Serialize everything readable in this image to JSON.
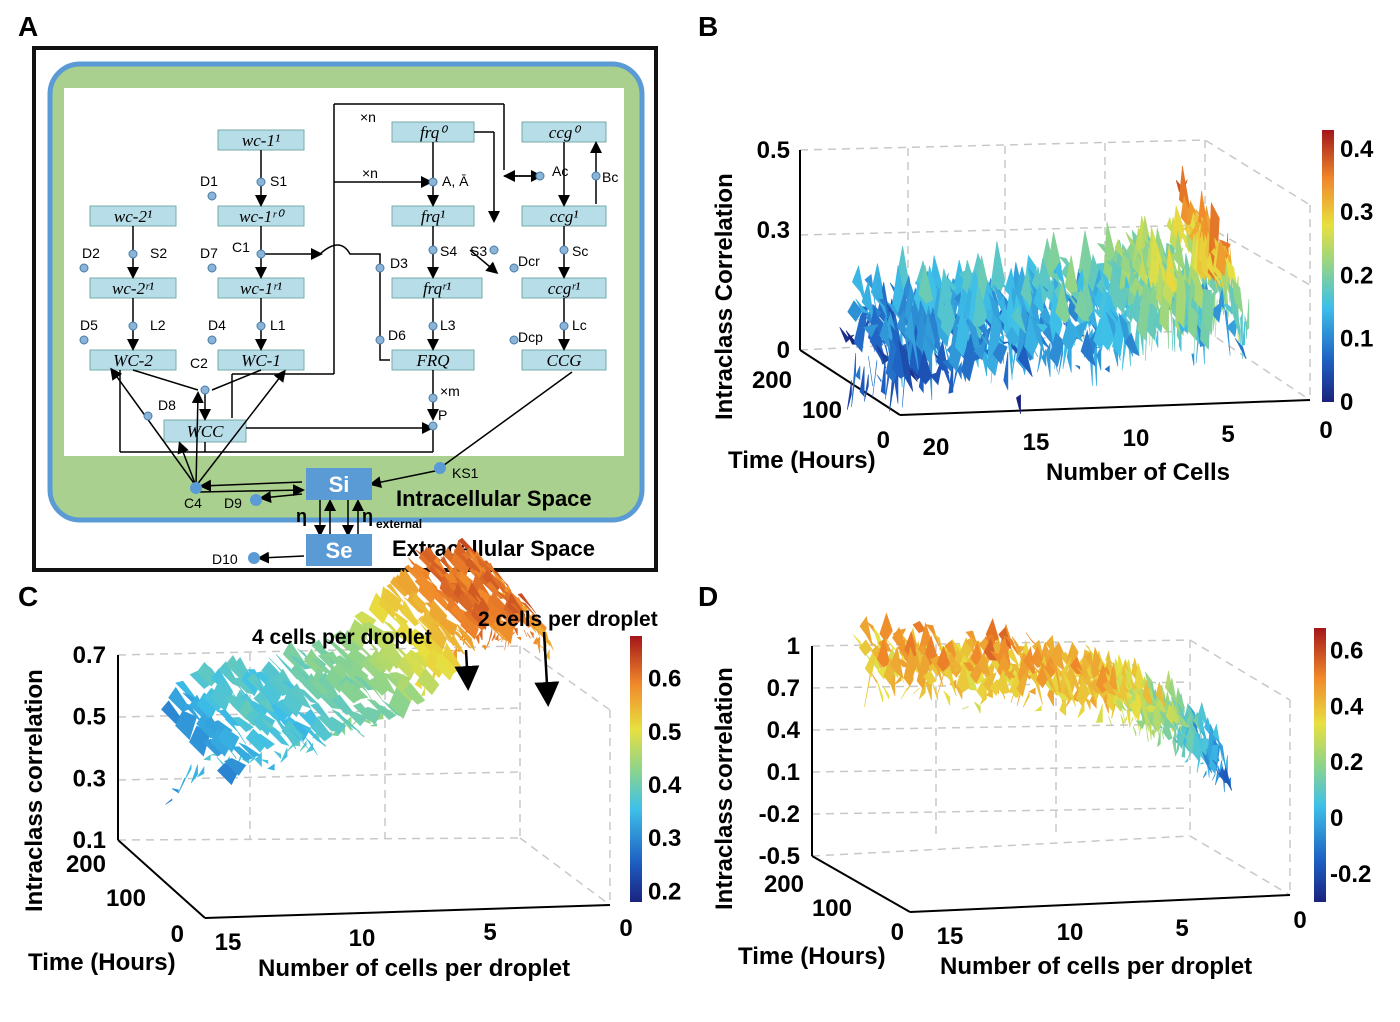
{
  "panels": {
    "A": {
      "letter": "A",
      "boxes": {
        "wc1_1": "wc-1¹",
        "wc1_r0": "wc-1ʳ⁰",
        "wc1_r1": "wc-1ʳ¹",
        "WC1": "WC-1",
        "wc2_1": "wc-2¹",
        "wc2_r1": "wc-2ʳ¹",
        "WC2": "WC-2",
        "WCC": "WCC",
        "frq0": "frq⁰",
        "frq1": "frq¹",
        "frqr1": "frqʳ¹",
        "FRQ": "FRQ",
        "ccg0": "ccg⁰",
        "ccg1": "ccg¹",
        "ccgr1": "ccgʳ¹",
        "CCG": "CCG",
        "Si": "Si",
        "Se": "Se"
      },
      "labels": {
        "D1": "D1",
        "S1": "S1",
        "D2": "D2",
        "S2": "S2",
        "D7": "D7",
        "C1": "C1",
        "L2": "L2",
        "L1": "L1",
        "D5": "D5",
        "D4": "D4",
        "C2": "C2",
        "D8": "D8",
        "xn_top": "×n",
        "xn_mid": "×n",
        "AAbar": "A, Ā",
        "D3": "D3",
        "S4": "S4",
        "S3": "S3",
        "D6": "D6",
        "L3": "L3",
        "xm": "×m",
        "P": "P",
        "Ac": "Ac",
        "Bc": "Bc",
        "Sc": "Sc",
        "Dcr": "Dcr",
        "Lc": "Lc",
        "Dcp": "Dcp",
        "C4": "C4",
        "D9": "D9",
        "KS1": "KS1",
        "eta": "η",
        "eta_ext": "η",
        "eta_ext_sub": "external",
        "D10": "D10"
      },
      "intracellular": "Intracellular Space",
      "extracellular": "Extracellular Space"
    },
    "B": {
      "letter": "B",
      "chart": "chart_data.0"
    },
    "C": {
      "letter": "C",
      "chart": "chart_data.1",
      "annotations": [
        "4 cells per droplet",
        "2 cells per droplet"
      ]
    },
    "D": {
      "letter": "D",
      "chart": "chart_data.2"
    }
  },
  "colors": {
    "membrane": "#5b9bd5",
    "cytoplasm": "#a9d08e",
    "nucleus": "#ffffff",
    "gene_box": "#b7dde8",
    "signal_box": "#5b9bd5"
  },
  "chart_data": [
    {
      "type": "surface3d",
      "title": "",
      "xlabel": "Number of Cells",
      "ylabel": "Time (Hours)",
      "zlabel": "Intraclass Correlation",
      "x_ticks": [
        "20",
        "15",
        "10",
        "5",
        "0"
      ],
      "y_ticks": [
        "0",
        "100",
        "200"
      ],
      "z_ticks": [
        "0",
        "0.3",
        "0.5"
      ],
      "zlim": [
        0,
        0.5
      ],
      "colorbar": {
        "ticks": [
          "0",
          "0.1",
          "0.2",
          "0.3",
          "0.4"
        ],
        "range": [
          0,
          0.43
        ]
      },
      "profile_x": [
        20,
        18,
        16,
        14,
        12,
        10,
        8,
        6,
        5,
        4,
        3,
        2,
        1
      ],
      "profile_z": [
        0.08,
        0.07,
        0.1,
        0.12,
        0.1,
        0.14,
        0.12,
        0.18,
        0.22,
        0.2,
        0.15,
        0.35,
        0.1
      ]
    },
    {
      "type": "surface3d",
      "title": "",
      "xlabel": "Number of cells per droplet",
      "ylabel": "Time (Hours)",
      "zlabel": "Intraclass correlation",
      "x_ticks": [
        "15",
        "10",
        "5",
        "0"
      ],
      "y_ticks": [
        "0",
        "100",
        "200"
      ],
      "z_ticks": [
        "0.1",
        "0.3",
        "0.5",
        "0.7"
      ],
      "zlim": [
        0.1,
        0.7
      ],
      "colorbar": {
        "ticks": [
          "0.2",
          "0.3",
          "0.4",
          "0.5",
          "0.6"
        ],
        "range": [
          0.18,
          0.68
        ]
      },
      "profile_x": [
        16,
        14,
        12,
        10,
        8,
        6,
        5,
        4,
        3,
        2,
        1
      ],
      "profile_z": [
        0.3,
        0.38,
        0.35,
        0.4,
        0.42,
        0.5,
        0.55,
        0.62,
        0.58,
        0.62,
        0.55
      ]
    },
    {
      "type": "surface3d",
      "title": "",
      "xlabel": "Number of cells per droplet",
      "ylabel": "Time (Hours)",
      "zlabel": "Intraclass correlation",
      "x_ticks": [
        "15",
        "10",
        "5",
        "0"
      ],
      "y_ticks": [
        "0",
        "100",
        "200"
      ],
      "z_ticks": [
        "-0.5",
        "-0.2",
        "0.1",
        "0.4",
        "0.7",
        "1"
      ],
      "zlim": [
        -0.5,
        1
      ],
      "colorbar": {
        "ticks": [
          "-0.2",
          "0",
          "0.2",
          "0.4",
          "0.6"
        ],
        "range": [
          -0.3,
          0.68
        ]
      },
      "profile_x": [
        16,
        14,
        12,
        10,
        8,
        6,
        5,
        4,
        3,
        2,
        1
      ],
      "profile_z": [
        0.35,
        0.4,
        0.38,
        0.42,
        0.4,
        0.36,
        0.3,
        0.25,
        0.15,
        0.05,
        -0.1
      ]
    }
  ]
}
